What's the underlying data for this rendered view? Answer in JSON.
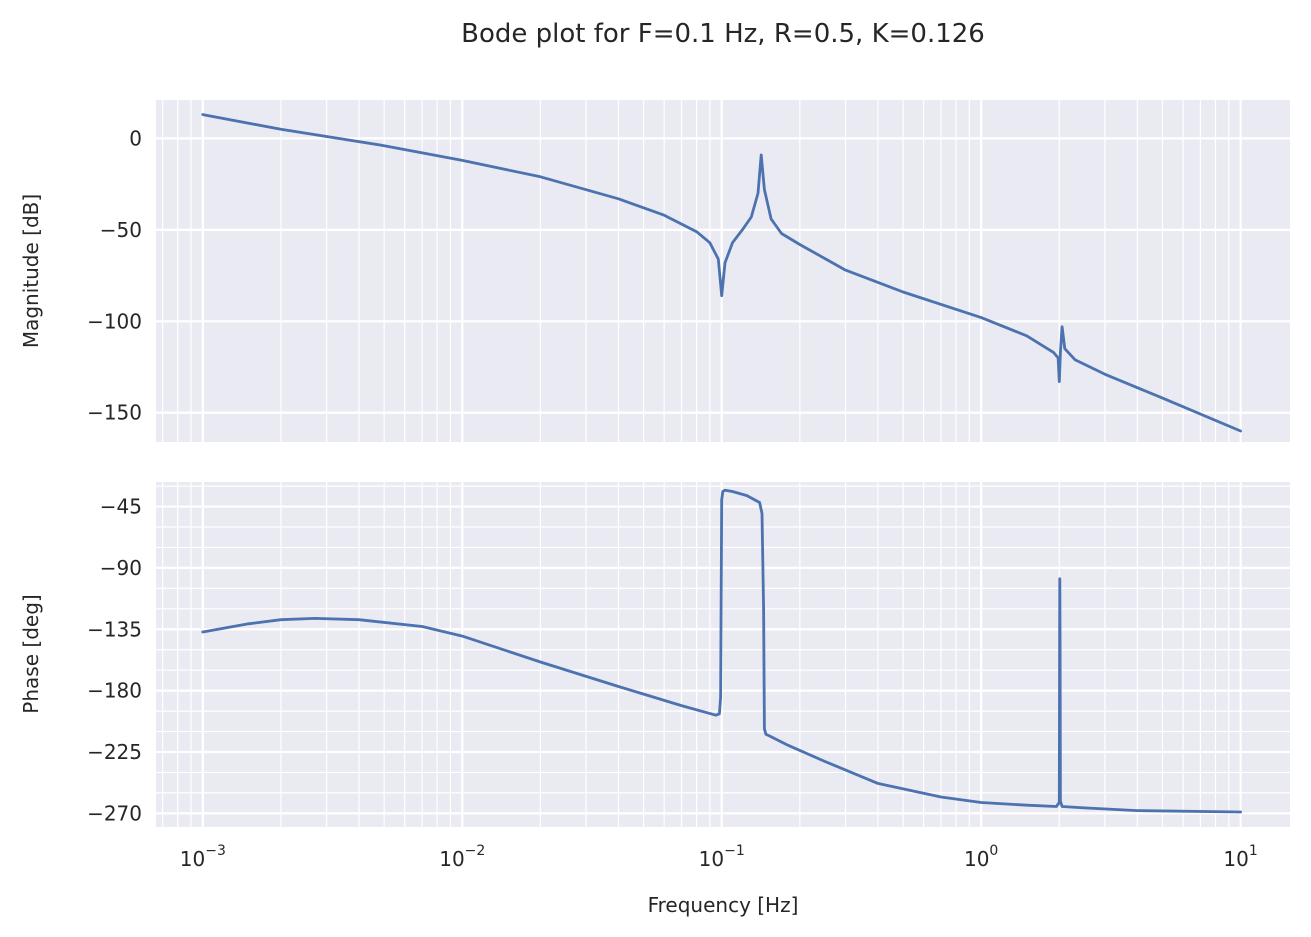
{
  "figure": {
    "title": "Bode plot for F=0.1 Hz, R=0.5, K=0.126",
    "xlabel": "Frequency [Hz]",
    "line_color": "#4C72B0",
    "panel_color": "#EAEAF2"
  },
  "chart_data": [
    {
      "type": "line",
      "title": "",
      "xlabel": "",
      "ylabel": "Magnitude [dB]",
      "xscale": "log",
      "xlim": [
        0.00066,
        15.5
      ],
      "ylim": [
        -166,
        21
      ],
      "grid": true,
      "x_tick_labels": [],
      "y_ticks": [
        0,
        -50,
        -100,
        -150
      ],
      "y_tick_labels": [
        "0",
        "−50",
        "−100",
        "−150"
      ],
      "series": [
        {
          "name": "",
          "x": [
            0.001,
            0.002,
            0.005,
            0.01,
            0.02,
            0.04,
            0.06,
            0.08,
            0.09,
            0.097,
            0.1,
            0.103,
            0.11,
            0.12,
            0.13,
            0.138,
            0.142,
            0.146,
            0.155,
            0.17,
            0.2,
            0.3,
            0.5,
            1.0,
            1.5,
            1.9,
            1.98,
            2.0,
            2.02,
            2.05,
            2.1,
            2.3,
            3.0,
            5.0,
            10.0
          ],
          "y": [
            13,
            5,
            -4,
            -12,
            -21,
            -33,
            -42,
            -51,
            -57,
            -66,
            -86,
            -68,
            -57,
            -50,
            -43,
            -30,
            -9,
            -28,
            -44,
            -52,
            -58,
            -72,
            -84,
            -98,
            -108,
            -117,
            -120,
            -133,
            -117,
            -103,
            -115,
            -121,
            -129,
            -142,
            -160
          ]
        }
      ]
    },
    {
      "type": "line",
      "title": "",
      "xlabel": "Frequency [Hz]",
      "ylabel": "Phase [deg]",
      "xscale": "log",
      "xlim": [
        0.00066,
        15.5
      ],
      "ylim": [
        -280,
        -27
      ],
      "grid": true,
      "x_ticks": [
        0.001,
        0.01,
        0.1,
        1,
        10
      ],
      "x_tick_labels": [
        "10",
        "10",
        "10",
        "10",
        "10"
      ],
      "x_tick_exponents": [
        "−3",
        "−2",
        "−1",
        "0",
        "1"
      ],
      "y_ticks": [
        -45,
        -90,
        -135,
        -180,
        -225,
        -270
      ],
      "y_tick_labels": [
        "−45",
        "−90",
        "−135",
        "−180",
        "−225",
        "−270"
      ],
      "series": [
        {
          "name": "",
          "x": [
            0.001,
            0.0015,
            0.002,
            0.0027,
            0.004,
            0.007,
            0.01,
            0.02,
            0.04,
            0.07,
            0.095,
            0.098,
            0.099,
            0.1,
            0.101,
            0.103,
            0.11,
            0.125,
            0.14,
            0.143,
            0.145,
            0.146,
            0.148,
            0.152,
            0.18,
            0.25,
            0.4,
            0.7,
            1.0,
            1.5,
            1.95,
            2.0,
            2.005,
            2.01,
            2.015,
            2.02,
            2.05,
            2.5,
            4.0,
            10.0
          ],
          "y": [
            -137,
            -131,
            -128,
            -127,
            -128,
            -133,
            -140,
            -159,
            -177,
            -191,
            -198,
            -197,
            -185,
            -40,
            -34,
            -33,
            -34,
            -37,
            -42,
            -50,
            -120,
            -208,
            -212,
            -213,
            -220,
            -232,
            -248,
            -258,
            -262,
            -264,
            -265,
            -262,
            -150,
            -98,
            -150,
            -261,
            -265,
            -266,
            -268,
            -269
          ]
        }
      ]
    }
  ]
}
